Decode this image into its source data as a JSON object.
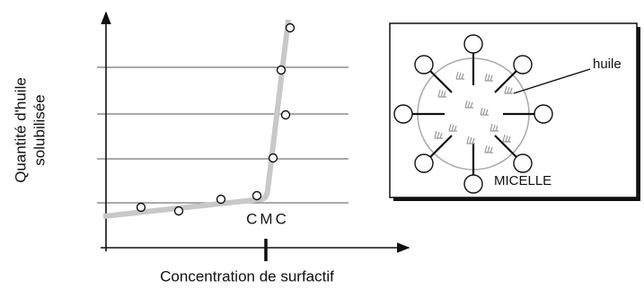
{
  "axes": {
    "x_label": "Concentration de surfactif",
    "y_label_line1": "Quantité d'huile",
    "y_label_line2": "solubilisée",
    "cmc_label": "CMC"
  },
  "inset": {
    "oil_label": "huile",
    "micelle_label": "MICELLE"
  }
}
